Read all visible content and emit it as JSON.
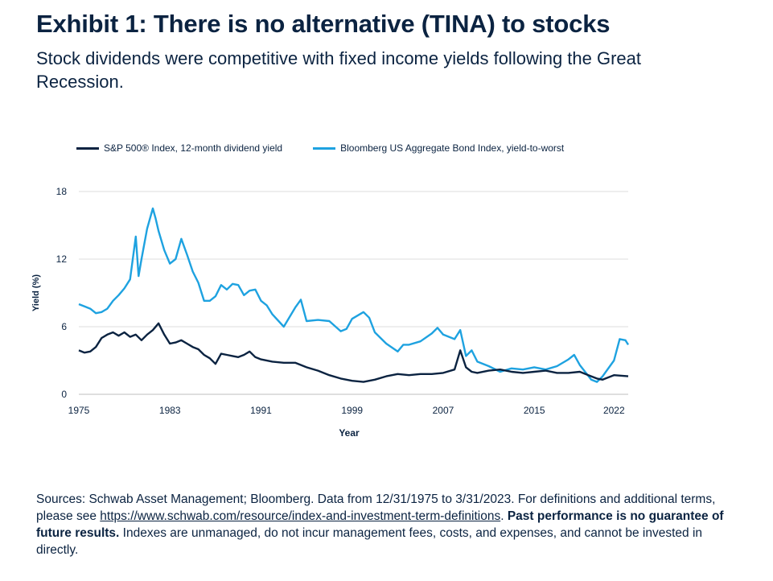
{
  "header": {
    "title": "Exhibit 1: There is no alternative (TINA) to stocks",
    "subtitle": "Stock dividends were competitive with fixed income yields following the Great Recession."
  },
  "footer": {
    "sources_text": "Sources: Schwab Asset Management; Bloomberg. Data from 12/31/1975 to 3/31/2023. For definitions and additional terms, please see ",
    "link_text": "https://www.schwab.com/resource/index-and-investment-term-definitions",
    "period": ".",
    "bold_text": "Past performance is no guarantee of future results.",
    "rest_text": " Indexes are unmanaged, do not incur management fees, costs, and expenses, and cannot be invested in directly."
  },
  "chart_data": {
    "type": "line",
    "xlabel": "Year",
    "ylabel": "Yield (%)",
    "xlim": [
      1975,
      2023.25
    ],
    "ylim": [
      0,
      18
    ],
    "xticks": [
      1975,
      1983,
      1991,
      1999,
      2007,
      2015,
      2022
    ],
    "yticks": [
      0,
      6,
      12,
      18
    ],
    "grid": true,
    "legend_position": "top",
    "colors": {
      "sp500": "#0b2341",
      "bond": "#1ea2e0"
    },
    "series": [
      {
        "name": "S&P 500® Index, 12-month dividend yield",
        "x": [
          1975,
          1975.5,
          1976,
          1976.5,
          1977,
          1977.5,
          1978,
          1978.5,
          1979,
          1979.5,
          1980,
          1980.5,
          1981,
          1981.5,
          1982,
          1982.5,
          1983,
          1983.5,
          1984,
          1984.5,
          1985,
          1985.5,
          1986,
          1986.5,
          1987,
          1987.5,
          1988,
          1988.5,
          1989,
          1989.5,
          1990,
          1990.5,
          1991,
          1992,
          1993,
          1994,
          1995,
          1996,
          1997,
          1998,
          1999,
          2000,
          2001,
          2002,
          2003,
          2004,
          2005,
          2006,
          2007,
          2008,
          2008.5,
          2009,
          2009.5,
          2010,
          2011,
          2012,
          2013,
          2014,
          2015,
          2016,
          2017,
          2018,
          2019,
          2020,
          2020.5,
          2021,
          2022,
          2023.25
        ],
        "values": [
          3.9,
          3.7,
          3.8,
          4.2,
          5.0,
          5.3,
          5.5,
          5.2,
          5.5,
          5.1,
          5.3,
          4.8,
          5.3,
          5.7,
          6.3,
          5.3,
          4.5,
          4.6,
          4.8,
          4.5,
          4.2,
          4.0,
          3.5,
          3.2,
          2.7,
          3.6,
          3.5,
          3.4,
          3.3,
          3.5,
          3.8,
          3.3,
          3.1,
          2.9,
          2.8,
          2.8,
          2.4,
          2.1,
          1.7,
          1.4,
          1.2,
          1.1,
          1.3,
          1.6,
          1.8,
          1.7,
          1.8,
          1.8,
          1.9,
          2.2,
          3.9,
          2.4,
          2.0,
          1.9,
          2.1,
          2.2,
          2.0,
          1.9,
          2.0,
          2.1,
          1.9,
          1.9,
          2.0,
          1.6,
          1.4,
          1.3,
          1.7,
          1.6
        ]
      },
      {
        "name": "Bloomberg US Aggregate Bond Index, yield-to-worst",
        "x": [
          1975,
          1975.5,
          1976,
          1976.5,
          1977,
          1977.5,
          1978,
          1978.5,
          1979,
          1979.5,
          1980,
          1980.25,
          1980.5,
          1981,
          1981.5,
          1981.75,
          1982,
          1982.5,
          1983,
          1983.5,
          1984,
          1984.5,
          1985,
          1985.5,
          1986,
          1986.5,
          1987,
          1987.5,
          1988,
          1988.5,
          1989,
          1989.5,
          1990,
          1990.5,
          1991,
          1991.5,
          1992,
          1993,
          1994,
          1994.5,
          1995,
          1996,
          1997,
          1998,
          1998.5,
          1999,
          2000,
          2000.5,
          2001,
          2002,
          2003,
          2003.5,
          2004,
          2005,
          2006,
          2006.5,
          2007,
          2008,
          2008.5,
          2009,
          2009.5,
          2010,
          2011,
          2012,
          2013,
          2014,
          2015,
          2016,
          2017,
          2018,
          2018.5,
          2019,
          2020,
          2020.5,
          2021,
          2022,
          2022.5,
          2023,
          2023.25
        ],
        "values": [
          8.0,
          7.8,
          7.6,
          7.2,
          7.3,
          7.6,
          8.3,
          8.8,
          9.4,
          10.2,
          14.0,
          10.5,
          12.0,
          14.7,
          16.5,
          15.6,
          14.5,
          12.8,
          11.6,
          12.0,
          13.8,
          12.4,
          10.9,
          9.9,
          8.3,
          8.3,
          8.7,
          9.7,
          9.3,
          9.8,
          9.7,
          8.8,
          9.2,
          9.3,
          8.3,
          7.9,
          7.1,
          6.0,
          7.7,
          8.4,
          6.5,
          6.6,
          6.5,
          5.6,
          5.8,
          6.7,
          7.3,
          6.8,
          5.5,
          4.5,
          3.8,
          4.4,
          4.4,
          4.7,
          5.4,
          5.9,
          5.3,
          4.9,
          5.7,
          3.4,
          3.9,
          2.9,
          2.5,
          2.0,
          2.3,
          2.2,
          2.4,
          2.2,
          2.5,
          3.1,
          3.5,
          2.6,
          1.3,
          1.1,
          1.6,
          3.0,
          4.9,
          4.8,
          4.4
        ]
      }
    ]
  }
}
